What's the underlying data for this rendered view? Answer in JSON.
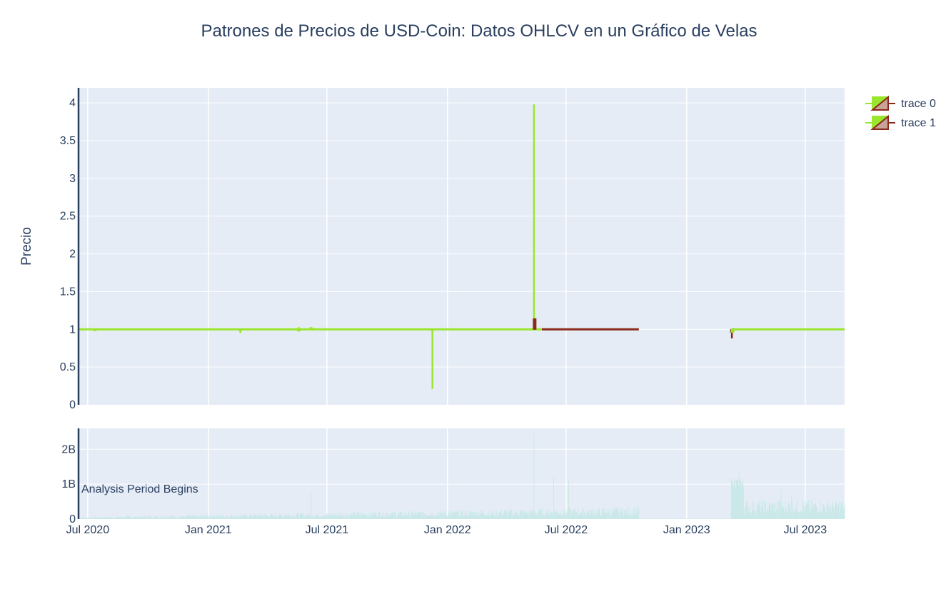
{
  "chart_data": {
    "type": "candlestick",
    "title": "Patrones de Precios de USD-Coin: Datos OHLCV en un Gráfico de Velas",
    "ylabel": "Precio",
    "xlabel": "",
    "x_ticks": [
      "Jul 2020",
      "Jan 2021",
      "Jul 2021",
      "Jan 2022",
      "Jul 2022",
      "Jan 2023",
      "Jul 2023"
    ],
    "x_tick_dates": [
      "2020-07-01",
      "2021-01-01",
      "2021-07-01",
      "2022-01-01",
      "2022-07-01",
      "2023-01-01",
      "2023-07-01"
    ],
    "xlim": [
      "2020-06-17",
      "2023-08-30"
    ],
    "price_axis": {
      "ylim": [
        0,
        4.2
      ],
      "ticks": [
        "0",
        "0.5",
        "1",
        "1.5",
        "2",
        "2.5",
        "3",
        "3.5",
        "4"
      ],
      "tick_values": [
        0,
        0.5,
        1,
        1.5,
        2,
        2.5,
        3,
        3.5,
        4
      ]
    },
    "volume_axis": {
      "ylim": [
        0,
        2.6
      ],
      "unit": "B",
      "ticks": [
        "0",
        "1B",
        "2B"
      ],
      "tick_values": [
        0,
        1,
        2
      ]
    },
    "legend": {
      "placement": "top-right",
      "entries": [
        "trace 0",
        "trace 1"
      ]
    },
    "colors": {
      "increasing": "#9ae62e",
      "decreasing": "#8b2a1a",
      "volume": "#c6e8e6",
      "plot_bg": "#e5ecf6",
      "grid": "#ffffff",
      "text": "#2a3f5f",
      "axis_line": "#2a3f5f"
    },
    "series": [
      {
        "name": "trace 0",
        "segment": [
          [
            "2020-06-17",
            "2022-05-25"
          ],
          [
            "2023-03-11",
            "2023-08-30"
          ]
        ],
        "typical_close": 1.0
      },
      {
        "name": "trace 1",
        "segment": [
          [
            "2022-05-25",
            "2022-10-20"
          ]
        ],
        "typical_close": 1.0
      }
    ],
    "notable_candles": [
      {
        "date": "2020-07-12",
        "open": 1.0,
        "high": 1.0,
        "low": 0.98,
        "close": 1.0,
        "dir": "up"
      },
      {
        "date": "2021-02-19",
        "open": 1.0,
        "high": 1.0,
        "low": 0.95,
        "close": 1.0,
        "dir": "up"
      },
      {
        "date": "2021-05-19",
        "open": 1.0,
        "high": 1.03,
        "low": 0.97,
        "close": 1.0,
        "dir": "up"
      },
      {
        "date": "2021-06-07",
        "open": 1.0,
        "high": 1.03,
        "low": 1.0,
        "close": 1.02,
        "dir": "up"
      },
      {
        "date": "2021-12-09",
        "open": 1.0,
        "high": 1.0,
        "low": 0.21,
        "close": 1.0,
        "dir": "up"
      },
      {
        "date": "2022-05-13",
        "open": 1.0,
        "high": 3.98,
        "low": 1.0,
        "close": 1.01,
        "dir": "up"
      },
      {
        "date": "2022-05-14",
        "open": 1.14,
        "high": 1.14,
        "low": 1.0,
        "close": 1.0,
        "dir": "down"
      },
      {
        "date": "2023-03-11",
        "open": 1.0,
        "high": 1.0,
        "low": 0.88,
        "close": 0.96,
        "dir": "down"
      },
      {
        "date": "2023-03-12",
        "open": 0.96,
        "high": 1.0,
        "low": 0.96,
        "close": 1.0,
        "dir": "up"
      }
    ],
    "volume_spikes": [
      {
        "date": "2021-06-07",
        "value": 0.75
      },
      {
        "date": "2022-05-13",
        "value": 2.45
      },
      {
        "date": "2022-06-12",
        "value": 1.2
      },
      {
        "date": "2022-07-05",
        "value": 1.1
      },
      {
        "date": "2023-03-22",
        "value": 1.4
      },
      {
        "date": "2023-05-25",
        "value": 0.85
      },
      {
        "date": "2023-06-10",
        "value": 0.7
      }
    ],
    "annotations": [
      {
        "text": "Analysis Period Begins",
        "x": "2020-06-17"
      }
    ]
  }
}
